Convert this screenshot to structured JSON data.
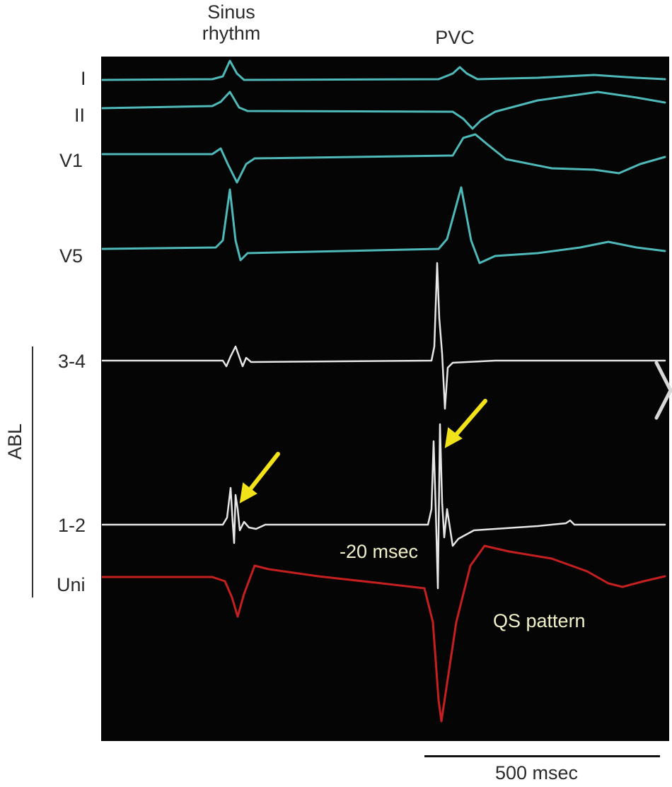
{
  "header": {
    "sinus_label": "Sinus\nrhythm",
    "pvc_label": "PVC"
  },
  "leads": [
    "I",
    "II",
    "V1",
    "V5",
    "3-4",
    "1-2",
    "Uni"
  ],
  "group_label": "ABL",
  "annotations": {
    "timing": "-20 msec",
    "pattern": "QS pattern"
  },
  "scale": {
    "label": "500 msec"
  },
  "colors": {
    "surface": "#4fb8b8",
    "bipolar": "#e6e6e6",
    "unipolar": "#c61f1f",
    "arrow": "#f2e21a",
    "background": "#050505"
  }
}
